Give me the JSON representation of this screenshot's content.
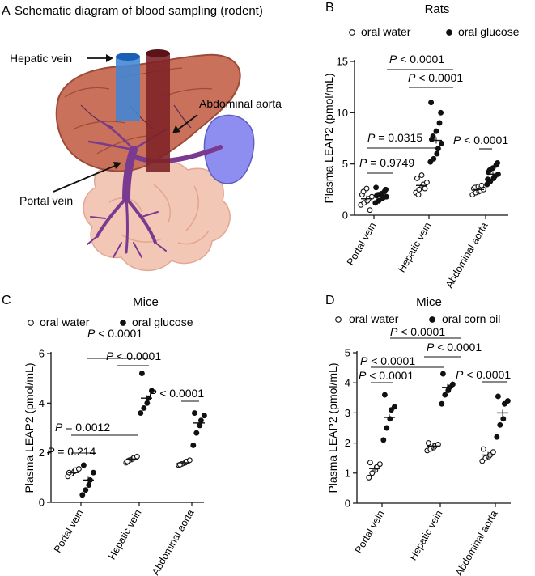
{
  "panel_a": {
    "letter": "A",
    "title": "Schematic diagram of blood sampling (rodent)",
    "labels": {
      "hepatic_vein": "Hepatic vein",
      "abdominal_aorta": "Abdominal aorta",
      "portal_vein": "Portal vein"
    }
  },
  "chart_data": [
    {
      "panel": "B",
      "type": "scatter",
      "title": "Rats",
      "ylabel": "Plasma LEAP2 (pmol/mL)",
      "xlabel": "",
      "ylim": [
        0,
        15
      ],
      "yticks": [
        0,
        5,
        10,
        15
      ],
      "categories": [
        "Portal vein",
        "Hepatic vein",
        "Abdominal aorta"
      ],
      "legend": {
        "position": "top",
        "entries": [
          "oral water",
          "oral glucose"
        ]
      },
      "series": [
        {
          "name": "oral water",
          "marker": "open-circle",
          "values": [
            [
              1.0,
              1.2,
              1.4,
              1.6,
              1.8,
              2.0,
              2.3,
              2.6,
              0.5
            ],
            [
              2.2,
              2.5,
              2.8,
              3.0,
              3.2,
              3.6,
              2.0,
              3.9,
              2.6
            ],
            [
              2.0,
              2.2,
              2.3,
              2.4,
              2.5,
              2.6,
              2.7,
              2.8,
              2.9
            ]
          ],
          "mean": [
            1.6,
            2.9,
            2.5
          ]
        },
        {
          "name": "oral glucose",
          "marker": "filled-circle",
          "values": [
            [
              1.2,
              1.4,
              1.6,
              1.7,
              1.8,
              1.9,
              2.0,
              2.1,
              2.3,
              2.5,
              2.7
            ],
            [
              5.2,
              5.5,
              6.0,
              6.5,
              7.0,
              7.4,
              7.7,
              8.2,
              9.0,
              10.0,
              11.0
            ],
            [
              3.0,
              3.3,
              3.6,
              3.8,
              4.0,
              4.2,
              4.4,
              4.6,
              4.9,
              5.1,
              3.5
            ]
          ],
          "mean": [
            1.9,
            7.3,
            4.0
          ]
        }
      ],
      "annotations": [
        "P = 0.9749",
        "P = 0.0315",
        "P < 0.0001",
        "P < 0.0001",
        "P < 0.0001"
      ]
    },
    {
      "panel": "C",
      "type": "scatter",
      "title": "Mice",
      "ylabel": "Plasma LEAP2 (pmol/mL)",
      "xlabel": "",
      "ylim": [
        0,
        6
      ],
      "yticks": [
        0,
        2,
        4,
        6
      ],
      "categories": [
        "Portal vein",
        "Hepatic vein",
        "Abdominal aorta"
      ],
      "legend": {
        "position": "top",
        "entries": [
          "oral water",
          "oral glucose"
        ]
      },
      "series": [
        {
          "name": "oral water",
          "marker": "open-circle",
          "values": [
            [
              1.05,
              1.15,
              1.25,
              1.3,
              1.35,
              1.2
            ],
            [
              1.6,
              1.7,
              1.75,
              1.8,
              1.85,
              1.65
            ],
            [
              1.5,
              1.55,
              1.6,
              1.65,
              1.7,
              1.52
            ]
          ],
          "mean": [
            1.2,
            1.75,
            1.6
          ]
        },
        {
          "name": "oral glucose",
          "marker": "filled-circle",
          "values": [
            [
              0.3,
              0.5,
              0.7,
              0.9,
              1.2,
              1.5
            ],
            [
              3.6,
              3.8,
              4.0,
              4.2,
              4.5,
              5.2
            ],
            [
              2.3,
              2.8,
              3.1,
              3.3,
              3.5,
              3.6
            ]
          ],
          "mean": [
            0.9,
            4.2,
            3.2
          ]
        }
      ],
      "annotations": [
        "P = 0.214",
        "P = 0.0012",
        "P < 0.0001",
        "P < 0.0001",
        "P < 0.0001"
      ]
    },
    {
      "panel": "D",
      "type": "scatter",
      "title": "Mice",
      "ylabel": "Plasma LEAP2 (pmol/mL)",
      "xlabel": "",
      "ylim": [
        0,
        5
      ],
      "yticks": [
        0,
        1,
        2,
        3,
        4,
        5
      ],
      "categories": [
        "Portal vein",
        "Hepatic vein",
        "Abdominal aorta"
      ],
      "legend": {
        "position": "top",
        "entries": [
          "oral water",
          "oral corn oil"
        ]
      },
      "series": [
        {
          "name": "oral water",
          "marker": "open-circle",
          "values": [
            [
              0.85,
              1.0,
              1.1,
              1.2,
              1.3,
              1.35
            ],
            [
              1.75,
              1.8,
              1.85,
              1.9,
              1.95,
              2.0
            ],
            [
              1.4,
              1.5,
              1.55,
              1.6,
              1.7,
              1.8
            ]
          ],
          "mean": [
            1.15,
            1.9,
            1.6
          ]
        },
        {
          "name": "oral corn oil",
          "marker": "filled-circle",
          "values": [
            [
              2.1,
              2.5,
              2.8,
              3.1,
              3.2,
              3.6
            ],
            [
              3.3,
              3.6,
              3.75,
              3.85,
              3.95,
              4.3
            ],
            [
              2.2,
              2.6,
              2.8,
              3.3,
              3.4,
              3.55
            ]
          ],
          "mean": [
            2.85,
            3.85,
            3.0
          ]
        }
      ],
      "annotations": [
        "P < 0.0001",
        "P < 0.0001",
        "P < 0.0001",
        "P < 0.0001",
        "P < 0.0001"
      ]
    }
  ]
}
